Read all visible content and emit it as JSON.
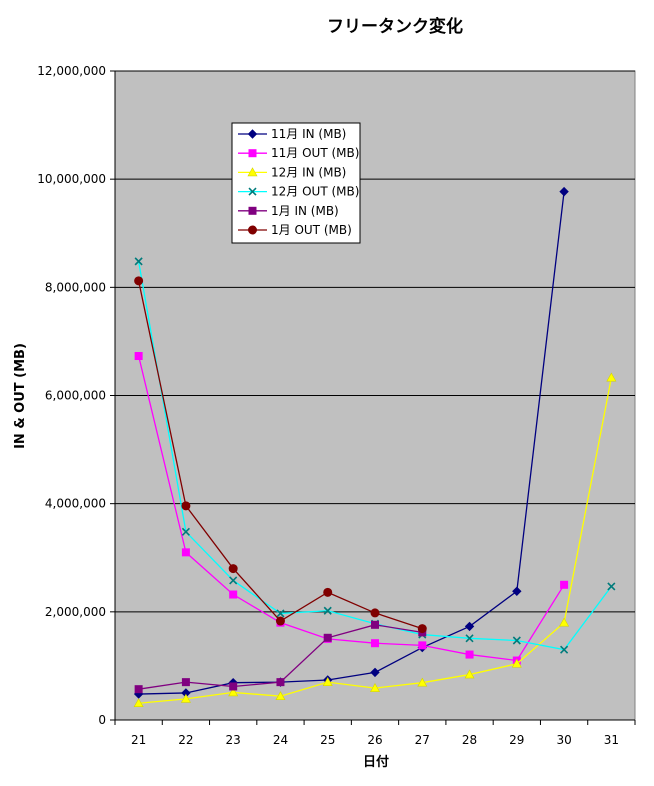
{
  "chart_data": {
    "type": "line",
    "title": "フリータンク変化",
    "xlabel": "日付",
    "ylabel": "IN & OUT (MB)",
    "categories": [
      "21",
      "22",
      "23",
      "24",
      "25",
      "26",
      "27",
      "28",
      "29",
      "30",
      "31"
    ],
    "y_ticks": [
      "0",
      "2,000,000",
      "4,000,000",
      "6,000,000",
      "8,000,000",
      "10,000,000",
      "12,000,000"
    ],
    "ylim": [
      0,
      12000000
    ],
    "grid": "horizontal major gridlines",
    "plot_background": "#c0c0c0",
    "legend_position": "top-left inside plot",
    "series": [
      {
        "name": "11月 IN (MB)",
        "color": "#000080",
        "marker": "diamond",
        "values": [
          480000,
          500000,
          690000,
          700000,
          740000,
          880000,
          1340000,
          1730000,
          2380000,
          9770000,
          null
        ]
      },
      {
        "name": "11月 OUT (MB)",
        "color": "#ff00ff",
        "marker": "square",
        "values": [
          6730000,
          3100000,
          2320000,
          1800000,
          1500000,
          1420000,
          1380000,
          1210000,
          1100000,
          2500000,
          null
        ]
      },
      {
        "name": "12月 IN (MB)",
        "color": "#ffff00",
        "marker": "triangle",
        "values": [
          310000,
          390000,
          510000,
          440000,
          700000,
          590000,
          690000,
          840000,
          1040000,
          1800000,
          6330000
        ]
      },
      {
        "name": "12月 OUT (MB)",
        "color": "#00ffff",
        "marker": "x",
        "values": [
          8480000,
          3480000,
          2580000,
          1970000,
          2020000,
          1780000,
          1580000,
          1510000,
          1470000,
          1300000,
          2470000
        ]
      },
      {
        "name": "1月 IN (MB)",
        "color": "#800080",
        "marker": "square",
        "values": [
          570000,
          700000,
          620000,
          700000,
          1520000,
          1760000,
          1620000,
          null,
          null,
          null,
          null
        ]
      },
      {
        "name": "1月 OUT (MB)",
        "color": "#800000",
        "marker": "circle",
        "values": [
          8120000,
          3960000,
          2800000,
          1830000,
          2360000,
          1980000,
          1690000,
          null,
          null,
          null,
          null
        ]
      }
    ]
  }
}
